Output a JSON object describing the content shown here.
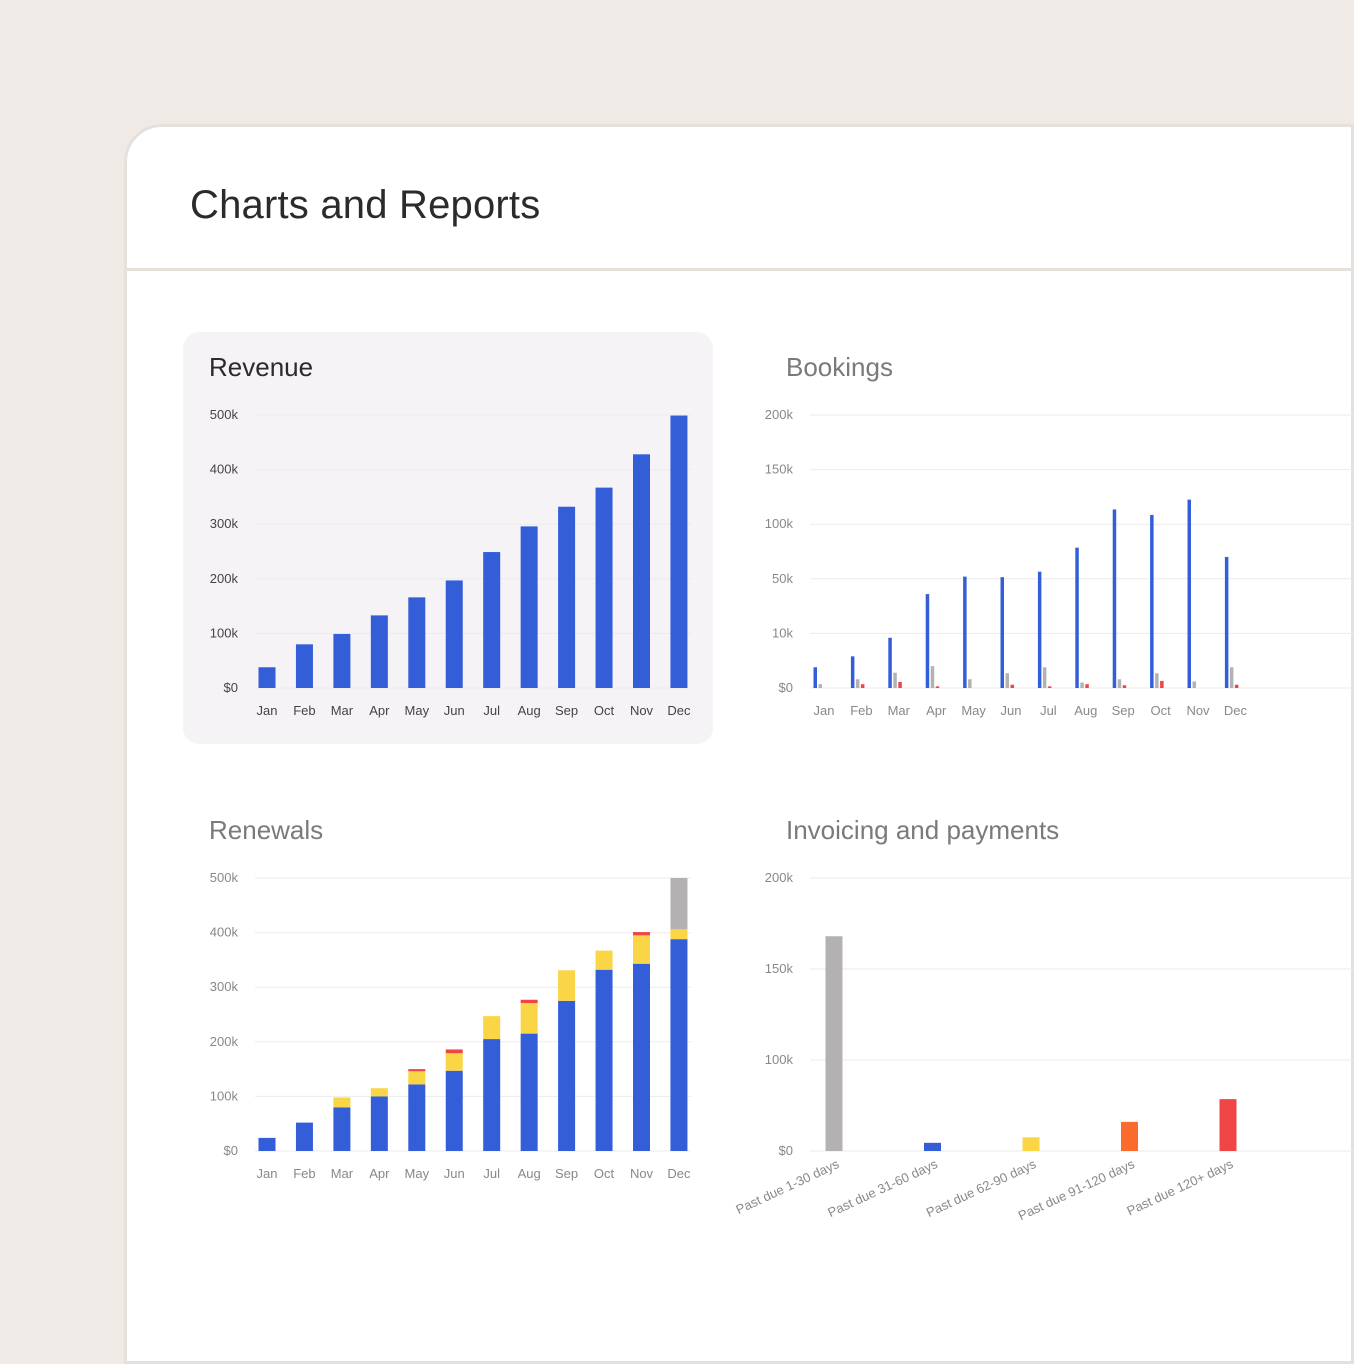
{
  "page": {
    "title": "Charts and Reports"
  },
  "colors": {
    "blue": "#345ed8",
    "yellow": "#fad546",
    "red": "#f04545",
    "gray": "#b4b1b3",
    "orange": "#fb6b2d",
    "grid": "#ebebeb"
  },
  "chart_data": [
    {
      "id": "revenue",
      "type": "bar",
      "title": "Revenue",
      "categories": [
        "Jan",
        "Feb",
        "Mar",
        "Apr",
        "May",
        "Jun",
        "Jul",
        "Aug",
        "Sep",
        "Oct",
        "Nov",
        "Dec"
      ],
      "yticks": [
        "$0",
        "100k",
        "200k",
        "300k",
        "400k",
        "500k"
      ],
      "ylim": [
        0,
        500000
      ],
      "series": [
        {
          "values": [
            38000,
            80000,
            99000,
            133000,
            166000,
            197000,
            249000,
            296000,
            332000,
            367000,
            428000,
            499000
          ],
          "color": "#345ed8"
        }
      ],
      "grid": true,
      "legend": "none"
    },
    {
      "id": "bookings",
      "type": "bar",
      "title": "Bookings",
      "categories": [
        "Jan",
        "Feb",
        "Mar",
        "Apr",
        "May",
        "Jun",
        "Jul",
        "Aug",
        "Sep",
        "Oct",
        "Nov",
        "Dec"
      ],
      "yticks": [
        "$0",
        "10k",
        "50k",
        "100k",
        "150k",
        "200k"
      ],
      "ylim": [
        0,
        5
      ],
      "series": [
        {
          "values": [
            0.38,
            0.58,
            0.92,
            1.72,
            2.04,
            2.03,
            2.13,
            2.57,
            3.27,
            3.17,
            3.45,
            2.4
          ],
          "color": "#345ed8"
        },
        {
          "values": [
            0.07,
            0.16,
            0.28,
            0.4,
            0.16,
            0.27,
            0.38,
            0.1,
            0.16,
            0.27,
            0.12,
            0.38
          ],
          "color": "#b4b1b3"
        },
        {
          "values": [
            0.0,
            0.07,
            0.11,
            0.03,
            0.0,
            0.06,
            0.03,
            0.07,
            0.05,
            0.13,
            0.0,
            0.06
          ],
          "color": "#f04545"
        }
      ],
      "grid": true,
      "legend": "none"
    },
    {
      "id": "renewals",
      "type": "bar",
      "title": "Renewals",
      "stacked": true,
      "categories": [
        "Jan",
        "Feb",
        "Mar",
        "Apr",
        "May",
        "Jun",
        "Jul",
        "Aug",
        "Sep",
        "Oct",
        "Nov",
        "Dec"
      ],
      "yticks": [
        "$0",
        "100k",
        "200k",
        "300k",
        "400k",
        "500k"
      ],
      "ylim": [
        0,
        500000
      ],
      "series": [
        {
          "values": [
            24000,
            52000,
            80000,
            100000,
            122000,
            147000,
            205000,
            215000,
            275000,
            332000,
            343000,
            388000
          ],
          "color": "#345ed8"
        },
        {
          "values": [
            0,
            0,
            18000,
            15000,
            24000,
            32000,
            42000,
            56000,
            56000,
            35000,
            52000,
            18000
          ],
          "color": "#fad546"
        },
        {
          "values": [
            0,
            0,
            0,
            0,
            4000,
            7000,
            0,
            6000,
            0,
            0,
            6000,
            0
          ],
          "color": "#f04545"
        },
        {
          "values": [
            0,
            0,
            0,
            0,
            0,
            0,
            0,
            0,
            0,
            0,
            0,
            94000
          ],
          "color": "#b4b1b3"
        }
      ],
      "grid": true,
      "legend": "none"
    },
    {
      "id": "invoicing",
      "type": "bar",
      "title": "Invoicing and payments",
      "categories": [
        "Past due 1-30 days",
        "Past due 31-60 days",
        "Past due 62-90 days",
        "Past due 91-120 days",
        "Past due 120+ days"
      ],
      "yticks": [
        "$0",
        "100k",
        "150k",
        "200k"
      ],
      "ylim": [
        0,
        3
      ],
      "values": [
        2.36,
        0.09,
        0.15,
        0.32,
        0.57
      ],
      "colors": [
        "#b4b1b3",
        "#345ed8",
        "#fad546",
        "#fb6b2d",
        "#f04545"
      ],
      "grid": true,
      "legend": "none"
    }
  ]
}
